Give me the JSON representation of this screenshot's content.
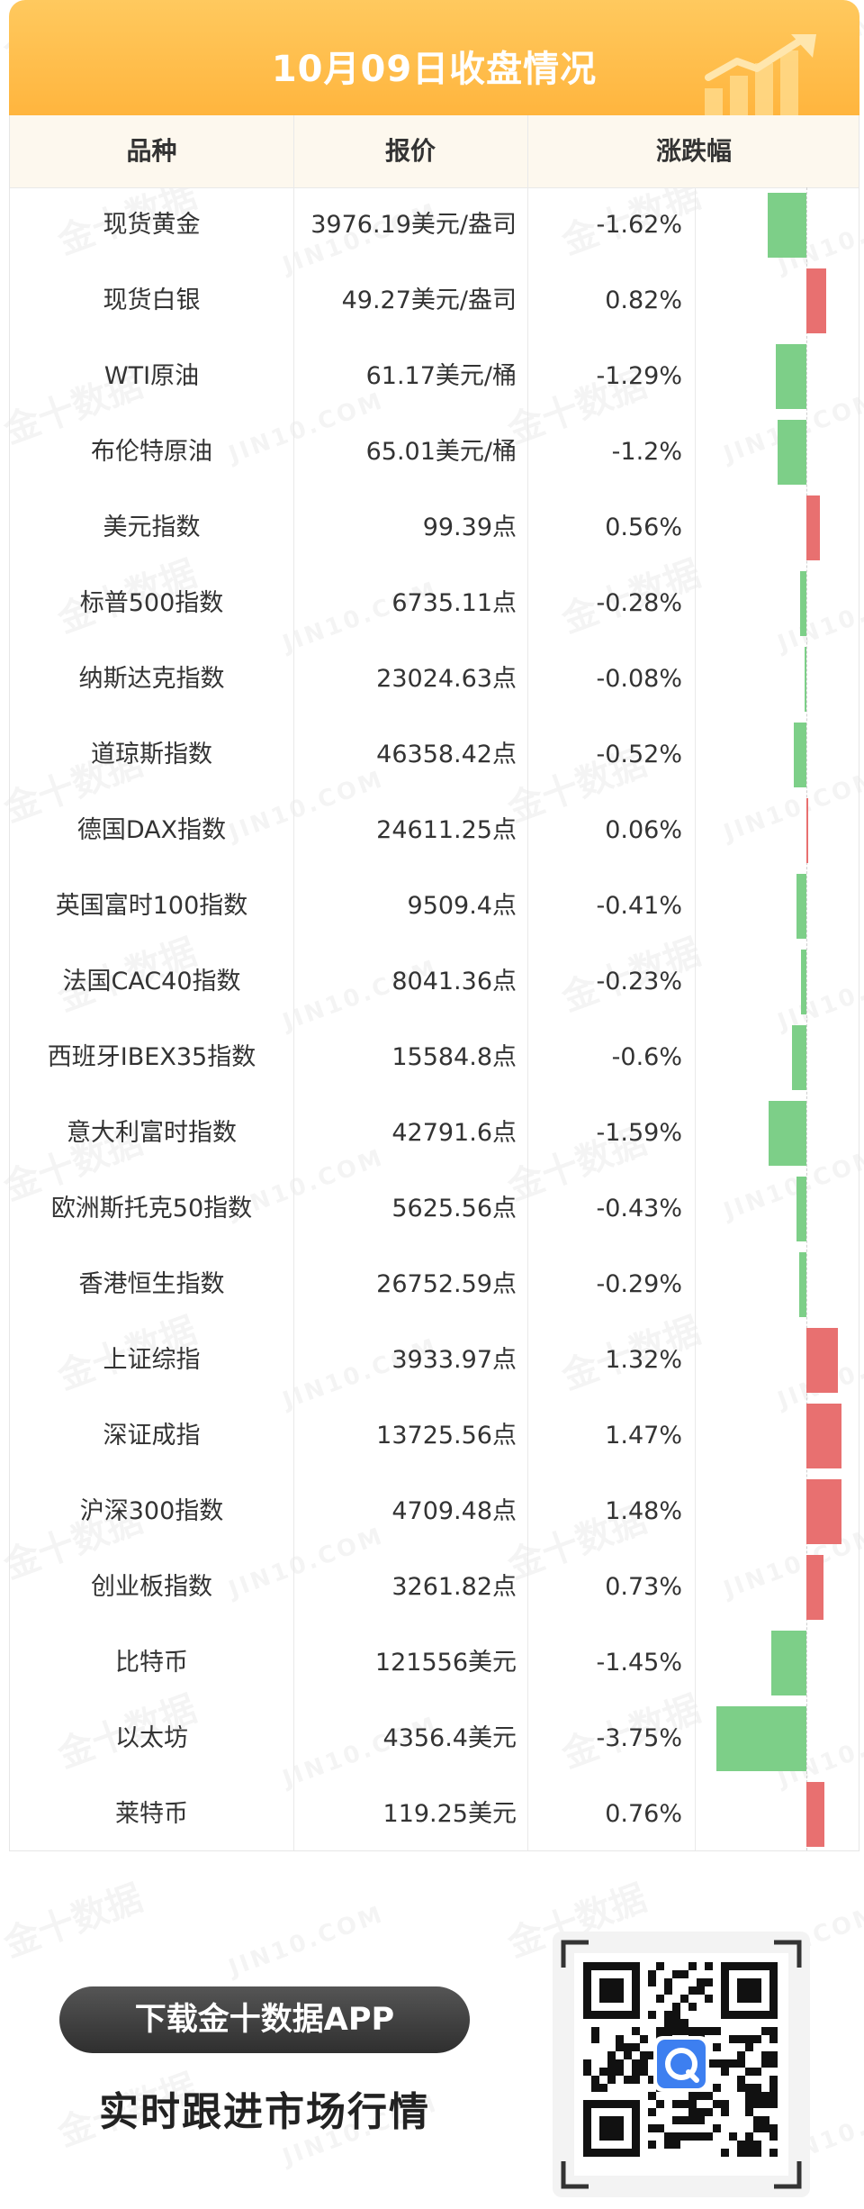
{
  "banner": {
    "title": "10月09日收盘情况"
  },
  "watermark": {
    "cn": "金十数据",
    "en": "JIN10.COM"
  },
  "table": {
    "headers": {
      "name": "品种",
      "price": "报价",
      "change": "涨跌幅"
    },
    "rows": [
      {
        "name": "现货黄金",
        "price": "3976.19美元/盎司",
        "change": "-1.62%",
        "value": -1.62
      },
      {
        "name": "现货白银",
        "price": "49.27美元/盎司",
        "change": "0.82%",
        "value": 0.82
      },
      {
        "name": "WTI原油",
        "price": "61.17美元/桶",
        "change": "-1.29%",
        "value": -1.29
      },
      {
        "name": "布伦特原油",
        "price": "65.01美元/桶",
        "change": "-1.2%",
        "value": -1.2
      },
      {
        "name": "美元指数",
        "price": "99.39点",
        "change": "0.56%",
        "value": 0.56
      },
      {
        "name": "标普500指数",
        "price": "6735.11点",
        "change": "-0.28%",
        "value": -0.28
      },
      {
        "name": "纳斯达克指数",
        "price": "23024.63点",
        "change": "-0.08%",
        "value": -0.08
      },
      {
        "name": "道琼斯指数",
        "price": "46358.42点",
        "change": "-0.52%",
        "value": -0.52
      },
      {
        "name": "德国DAX指数",
        "price": "24611.25点",
        "change": "0.06%",
        "value": 0.06
      },
      {
        "name": "英国富时100指数",
        "price": "9509.4点",
        "change": "-0.41%",
        "value": -0.41
      },
      {
        "name": "法国CAC40指数",
        "price": "8041.36点",
        "change": "-0.23%",
        "value": -0.23
      },
      {
        "name": "西班牙IBEX35指数",
        "price": "15584.8点",
        "change": "-0.6%",
        "value": -0.6
      },
      {
        "name": "意大利富时指数",
        "price": "42791.6点",
        "change": "-1.59%",
        "value": -1.59
      },
      {
        "name": "欧洲斯托克50指数",
        "price": "5625.56点",
        "change": "-0.43%",
        "value": -0.43
      },
      {
        "name": "香港恒生指数",
        "price": "26752.59点",
        "change": "-0.29%",
        "value": -0.29
      },
      {
        "name": "上证综指",
        "price": "3933.97点",
        "change": "1.32%",
        "value": 1.32
      },
      {
        "name": "深证成指",
        "price": "13725.56点",
        "change": "1.47%",
        "value": 1.47
      },
      {
        "name": "沪深300指数",
        "price": "4709.48点",
        "change": "1.48%",
        "value": 1.48
      },
      {
        "name": "创业板指数",
        "price": "3261.82点",
        "change": "0.73%",
        "value": 0.73
      },
      {
        "name": "比特币",
        "price": "121556美元",
        "change": "-1.45%",
        "value": -1.45
      },
      {
        "name": "以太坊",
        "price": "4356.4美元",
        "change": "-3.75%",
        "value": -3.75
      },
      {
        "name": "莱特币",
        "price": "119.25美元",
        "change": "0.76%",
        "value": 0.76
      }
    ]
  },
  "colors": {
    "up": "#e87070",
    "down": "#7dcf88",
    "accent": "#ffb53e"
  },
  "promo": {
    "download_label": "下载金十数据APP",
    "tagline": "实时跟进市场行情"
  },
  "qr": {
    "icon": "qr-code-icon",
    "center_logo": "jin10-logo-icon"
  }
}
